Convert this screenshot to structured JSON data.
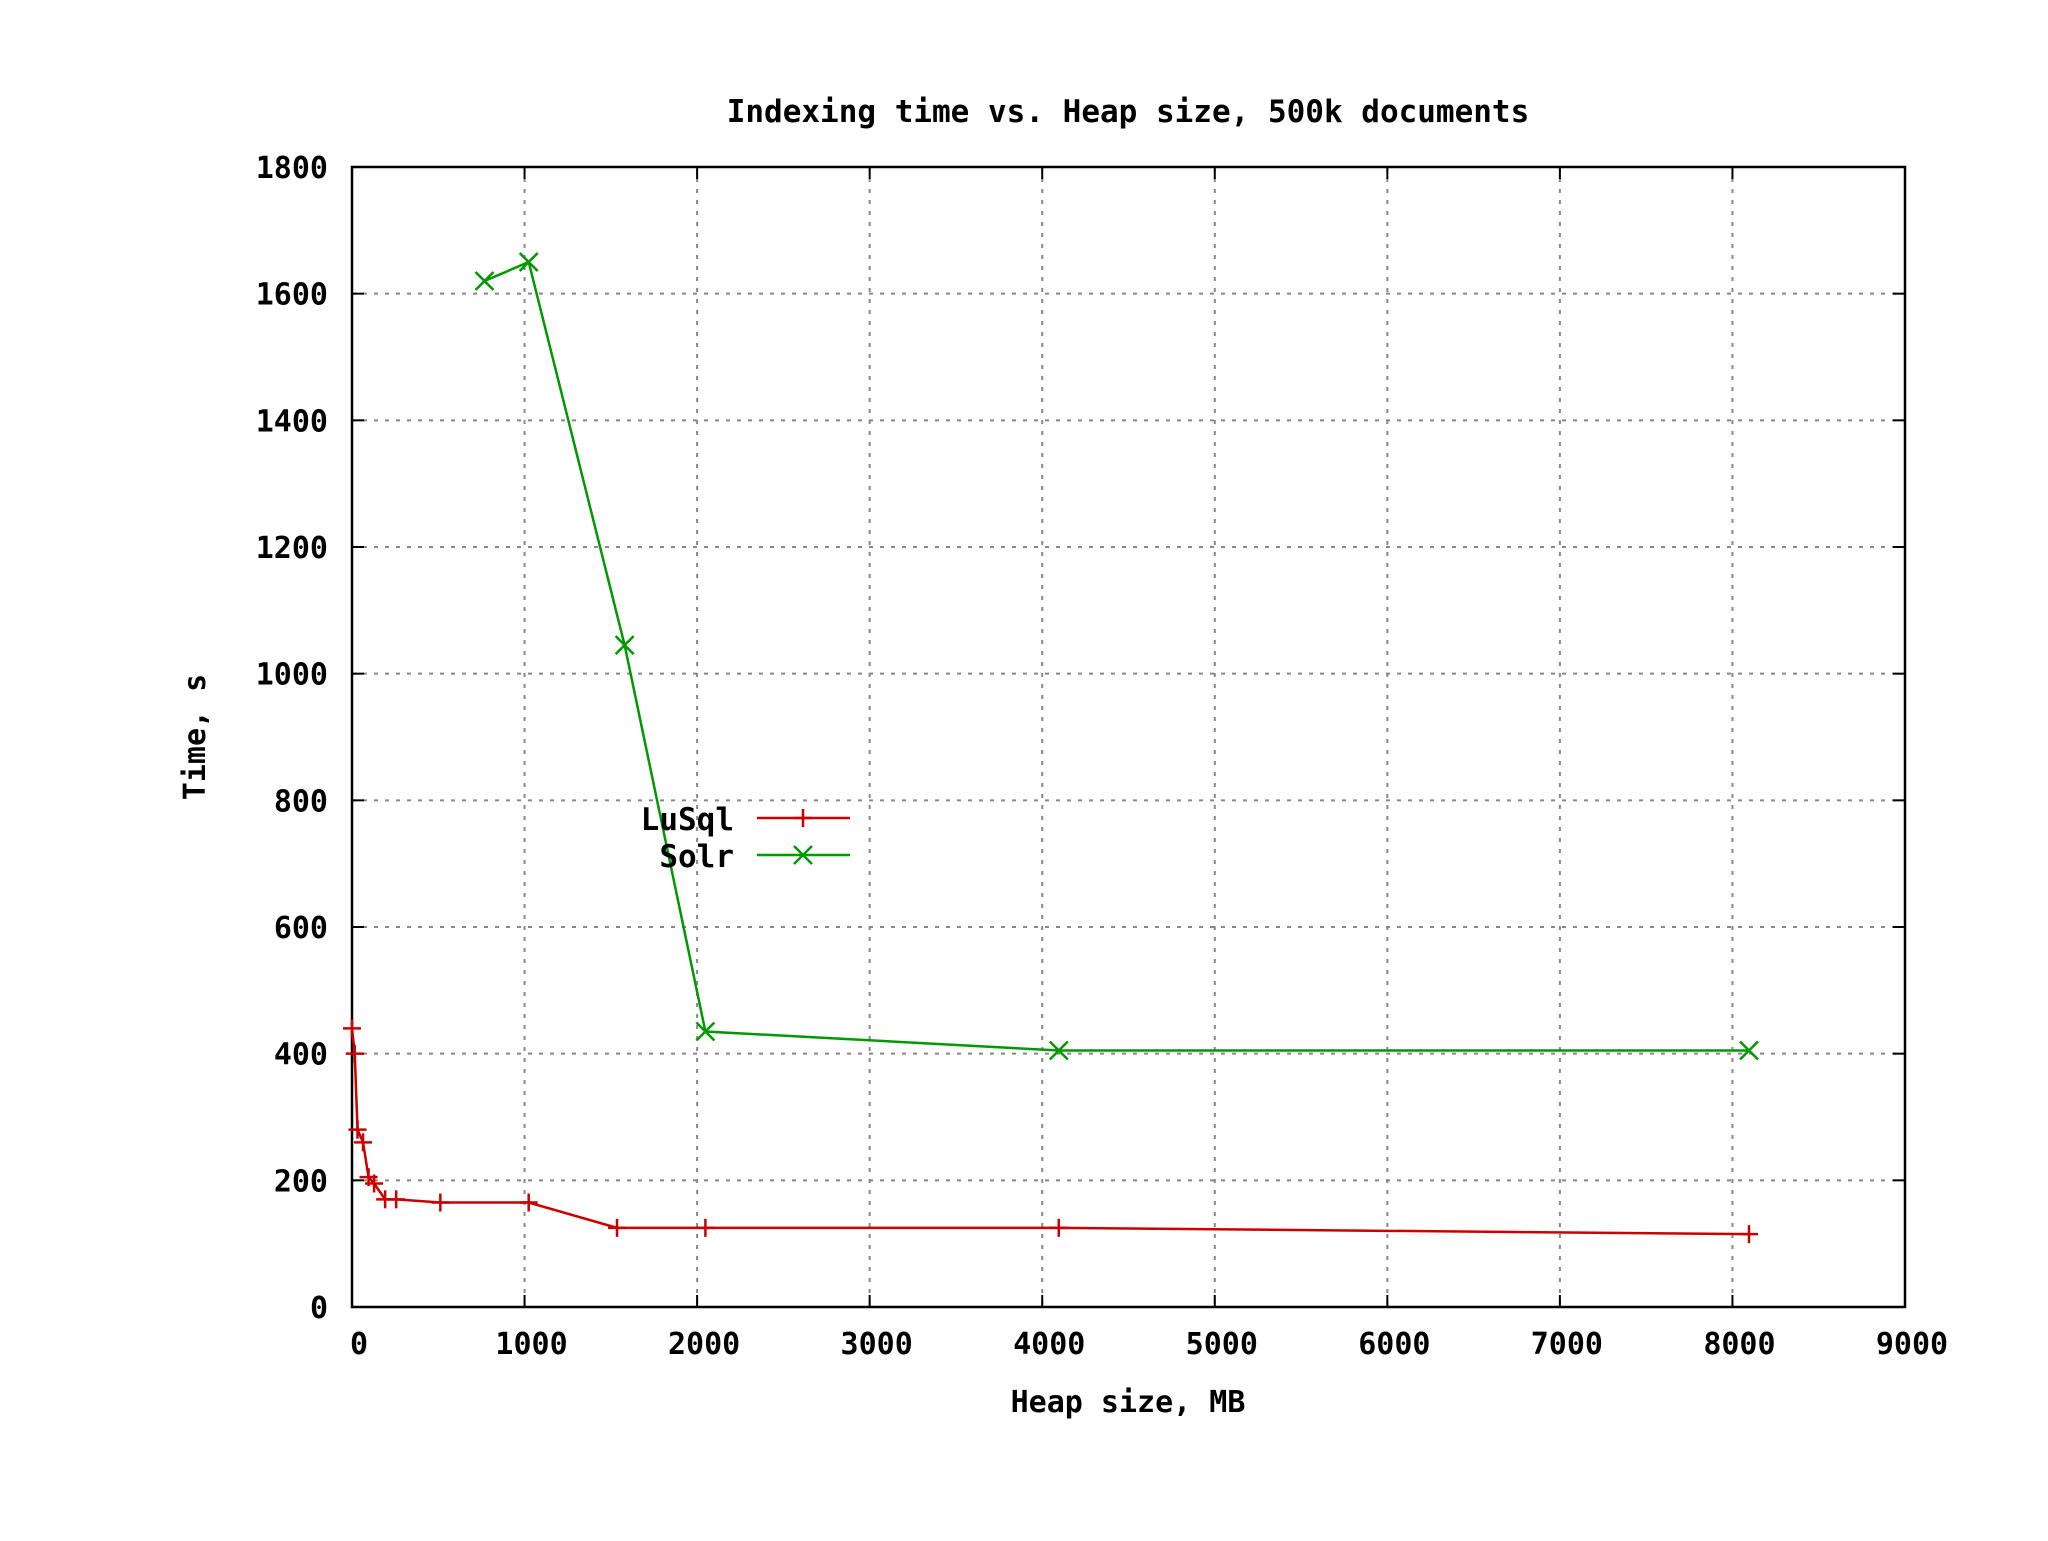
{
  "chart_data": {
    "type": "line",
    "title": "Indexing time vs. Heap size, 500k documents",
    "xlabel": "Heap size, MB",
    "ylabel": "Time, s",
    "xlim": [
      0,
      9000
    ],
    "ylim": [
      0,
      1800
    ],
    "x_ticks": [
      "0",
      "1000",
      "2000",
      "3000",
      "4000",
      "5000",
      "6000",
      "7000",
      "8000",
      "9000"
    ],
    "y_ticks": [
      "0",
      "200",
      "400",
      "600",
      "800",
      "1000",
      "1200",
      "1400",
      "1600",
      "1800"
    ],
    "grid": true,
    "legend_position": "center-left",
    "series": [
      {
        "name": "LuSql",
        "color": "#cc0000",
        "marker": "plus",
        "x": [
          0,
          16,
          32,
          64,
          96,
          128,
          192,
          256,
          512,
          1024,
          1536,
          2048,
          4096,
          8096
        ],
        "y": [
          440,
          400,
          280,
          260,
          205,
          195,
          170,
          170,
          165,
          165,
          125,
          125,
          125,
          115
        ]
      },
      {
        "name": "Solr",
        "color": "#009900",
        "marker": "x",
        "x": [
          768,
          1024,
          1580,
          2048,
          4096,
          8096
        ],
        "y": [
          1620,
          1650,
          1045,
          435,
          405,
          405
        ]
      }
    ]
  }
}
